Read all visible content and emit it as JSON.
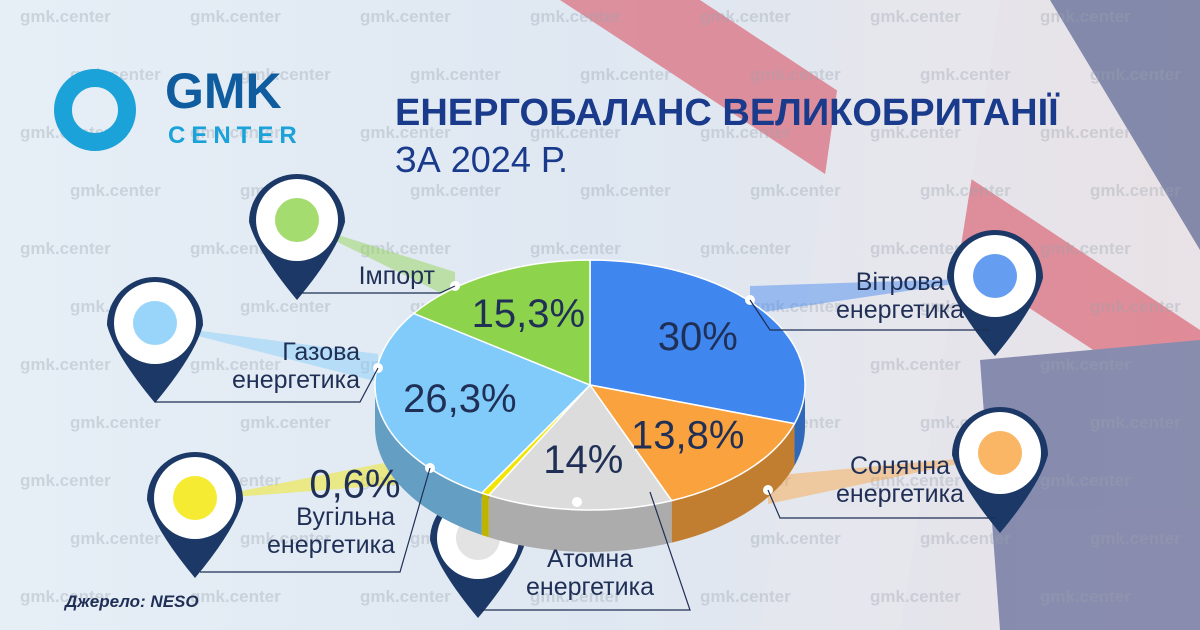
{
  "logo": {
    "main": "GMK",
    "sub": "CENTER"
  },
  "watermark": "gmk.center",
  "source": "Джерело: NESO",
  "chart_data": {
    "type": "pie",
    "title": "ЕНЕРГОБАЛАНС ВЕЛИКОБРИТАНІЇ",
    "subtitle": "ЗА 2024 Р.",
    "categories": [
      "Вітрова енергетика",
      "Сонячна енергетика",
      "Атомна енергетика",
      "Вугільна енергетика",
      "Газова енергетика",
      "Імпорт"
    ],
    "values": [
      30,
      13.8,
      14,
      0.6,
      26.3,
      15.3
    ],
    "value_labels": [
      "30%",
      "13,8%",
      "14%",
      "0,6%",
      "26,3%",
      "15,3%"
    ],
    "colors": [
      "#3f86ee",
      "#f9a23e",
      "#dcdcdc",
      "#f2e600",
      "#80cbfa",
      "#8dd34c"
    ]
  }
}
